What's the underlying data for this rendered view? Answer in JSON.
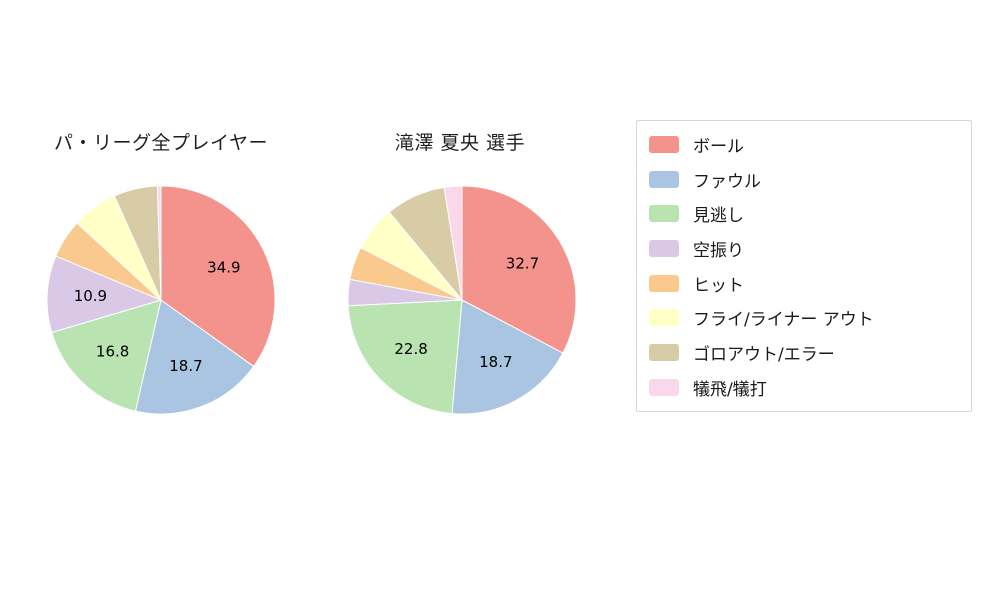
{
  "chart_data": [
    {
      "type": "pie",
      "title": "パ・リーグ全プレイヤー",
      "categories": [
        "ボール",
        "ファウル",
        "見逃し",
        "空振り",
        "ヒット",
        "フライ/ライナー アウト",
        "ゴロアウト/エラー",
        "犠飛/犠打"
      ],
      "values": [
        34.9,
        18.7,
        16.8,
        10.9,
        5.5,
        6.5,
        6.2,
        0.5
      ],
      "value_labels": [
        "34.9",
        "18.7",
        "16.8",
        "10.9",
        "",
        "",
        "",
        ""
      ],
      "start_angle": "top",
      "direction": "clockwise",
      "legend_position": "right"
    },
    {
      "type": "pie",
      "title": "滝澤 夏央  選手",
      "categories": [
        "ボール",
        "ファウル",
        "見逃し",
        "空振り",
        "ヒット",
        "フライ/ライナー アウト",
        "ゴロアウト/エラー",
        "犠飛/犠打"
      ],
      "values": [
        32.7,
        18.7,
        22.8,
        3.7,
        4.7,
        6.4,
        8.5,
        2.5
      ],
      "value_labels": [
        "32.7",
        "18.7",
        "22.8",
        "",
        "",
        "",
        "",
        ""
      ],
      "start_angle": "top",
      "direction": "clockwise",
      "legend_position": "right"
    }
  ],
  "legend": {
    "items": [
      {
        "label": "ボール",
        "color": "#f4938c"
      },
      {
        "label": "ファウル",
        "color": "#a9c5e1"
      },
      {
        "label": "見逃し",
        "color": "#b9e3b1"
      },
      {
        "label": "空振り",
        "color": "#d9c9e6"
      },
      {
        "label": "ヒット",
        "color": "#f9c98e"
      },
      {
        "label": "フライ/ライナー アウト",
        "color": "#ffffc6"
      },
      {
        "label": "ゴロアウト/エラー",
        "color": "#d8cca6"
      },
      {
        "label": "犠飛/犠打",
        "color": "#fbd7ec"
      }
    ]
  },
  "style": {
    "background": "#ffffff",
    "slice_border_color": "#ffffff",
    "label_color": "#000000"
  }
}
